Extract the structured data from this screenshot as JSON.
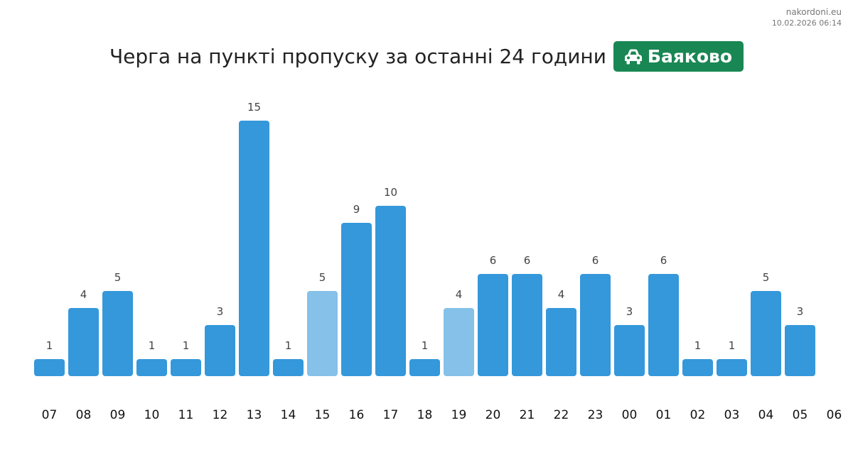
{
  "header": {
    "site": "nakordoni.eu",
    "timestamp": "10.02.2026 06:14",
    "title": "Черга на пункті пропуску за останні 24 години",
    "badge": {
      "icon": "car-icon",
      "label": "Баяково",
      "color": "#198754"
    }
  },
  "colors": {
    "bar": "#3498db",
    "bar_highlight": "#85c1e9"
  },
  "chart_data": {
    "type": "bar",
    "title": "Черга на пункті пропуску за останні 24 години",
    "xlabel": "",
    "ylabel": "",
    "categories": [
      "07",
      "08",
      "09",
      "10",
      "11",
      "12",
      "13",
      "14",
      "15",
      "16",
      "17",
      "18",
      "19",
      "20",
      "21",
      "22",
      "23",
      "00",
      "01",
      "02",
      "03",
      "04",
      "05"
    ],
    "x_ticks": [
      "07",
      "08",
      "09",
      "10",
      "11",
      "12",
      "13",
      "14",
      "15",
      "16",
      "17",
      "18",
      "19",
      "20",
      "21",
      "22",
      "23",
      "00",
      "01",
      "02",
      "03",
      "04",
      "05",
      "06"
    ],
    "values": [
      1,
      4,
      5,
      1,
      1,
      3,
      15,
      1,
      5,
      9,
      10,
      1,
      4,
      6,
      6,
      4,
      6,
      3,
      6,
      1,
      1,
      5,
      3
    ],
    "highlighted": [
      false,
      false,
      false,
      false,
      false,
      false,
      false,
      false,
      true,
      false,
      false,
      false,
      true,
      false,
      false,
      false,
      false,
      false,
      false,
      false,
      false,
      false,
      false
    ],
    "data_labels": true,
    "grid": false,
    "legend": "none"
  }
}
